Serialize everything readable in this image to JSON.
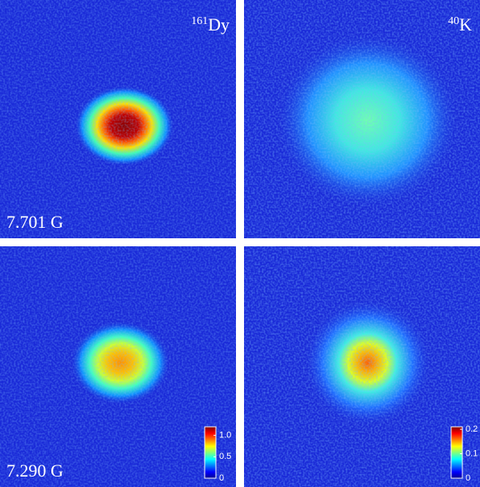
{
  "columns": [
    {
      "mass": "161",
      "symbol": "Dy"
    },
    {
      "mass": "40",
      "symbol": "K"
    }
  ],
  "rows": [
    "7.701 G",
    "7.290 G"
  ],
  "colorbars": [
    {
      "lim": [
        0,
        1.2
      ],
      "ticks": [
        0,
        0.5,
        {
          "value": 1,
          "label": "1.0"
        }
      ]
    },
    {
      "lim": [
        0,
        0.21
      ],
      "ticks": [
        0,
        0.1,
        0.2
      ]
    }
  ]
}
